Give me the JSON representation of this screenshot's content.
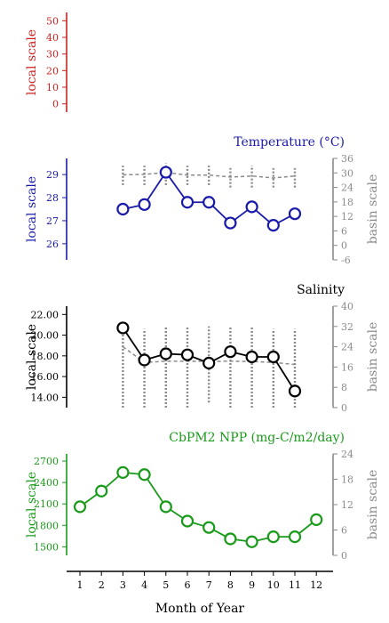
{
  "chart_data": [
    {
      "type": "line",
      "title": "",
      "ylabel": "local scale",
      "ylim": [
        -5,
        55
      ],
      "yticks": [
        0,
        10,
        20,
        30,
        40,
        50
      ],
      "color": "#cc2222",
      "series": []
    },
    {
      "type": "line",
      "title": "Temperature (°C)",
      "ylabel": "local scale",
      "ylabel_right": "basin scale",
      "color": "#1a1aaa",
      "ylim": [
        25.3,
        29.7
      ],
      "yticks": [
        26,
        27,
        28,
        29
      ],
      "ylim_right": [
        -6,
        36
      ],
      "yticks_right": [
        -6,
        0,
        6,
        12,
        18,
        24,
        30,
        36
      ],
      "x": [
        3,
        4,
        5,
        6,
        7,
        8,
        9,
        10,
        11
      ],
      "values": [
        27.5,
        27.7,
        29.1,
        27.8,
        27.8,
        26.9,
        27.6,
        26.8,
        27.3
      ],
      "basin_mean": [
        29.2,
        29.4,
        30.2,
        29.1,
        29.1,
        28.3,
        28.7,
        27.9,
        28.7
      ],
      "basin_whisker": [
        [
          25,
          33
        ],
        [
          25,
          33
        ],
        [
          25,
          34
        ],
        [
          25,
          33
        ],
        [
          25,
          33
        ],
        [
          24,
          32
        ],
        [
          24,
          33
        ],
        [
          24,
          32
        ],
        [
          24,
          32
        ]
      ]
    },
    {
      "type": "line",
      "title": "Salinity",
      "ylabel": "local scale",
      "ylabel_right": "basin scale",
      "color": "#000000",
      "ylim": [
        13.0,
        22.8
      ],
      "yticks": [
        14,
        16,
        18,
        20,
        22
      ],
      "ytick_labels": [
        "14.00",
        "16.00",
        "18.00",
        "20.00",
        "22.00"
      ],
      "ylim_right": [
        0,
        40
      ],
      "yticks_right": [
        0,
        8,
        16,
        24,
        32,
        40
      ],
      "x": [
        3,
        4,
        5,
        6,
        7,
        8,
        9,
        10,
        11
      ],
      "values": [
        20.7,
        17.6,
        18.2,
        18.1,
        17.3,
        18.4,
        17.9,
        17.9,
        14.6
      ],
      "basin_mean": [
        24.0,
        17.8,
        18.3,
        18.3,
        18.2,
        18.3,
        18.2,
        17.8,
        17.0
      ],
      "basin_whisker": [
        [
          0,
          30
        ],
        [
          0,
          31
        ],
        [
          0,
          32
        ],
        [
          0,
          32
        ],
        [
          2,
          32
        ],
        [
          0,
          32
        ],
        [
          0,
          32
        ],
        [
          0,
          31
        ],
        [
          0,
          31
        ]
      ]
    },
    {
      "type": "line",
      "title": "CbPM2 NPP (mg-C/m2/day)",
      "ylabel": "local scale",
      "ylabel_right": "basin scale",
      "color": "#1a9a1a",
      "ylim": [
        1380,
        2800
      ],
      "yticks": [
        1500,
        1800,
        2100,
        2400,
        2700
      ],
      "ylim_right": [
        0,
        24
      ],
      "yticks_right": [
        0,
        6,
        12,
        18,
        24
      ],
      "x": [
        1,
        2,
        3,
        4,
        5,
        6,
        7,
        8,
        9,
        10,
        11,
        12
      ],
      "values": [
        2060,
        2280,
        2540,
        2510,
        2060,
        1860,
        1770,
        1610,
        1570,
        1640,
        1640,
        1880
      ]
    }
  ],
  "x_axis": {
    "label": "Month of Year",
    "ticks": [
      1,
      2,
      3,
      4,
      5,
      6,
      7,
      8,
      9,
      10,
      11,
      12
    ]
  }
}
